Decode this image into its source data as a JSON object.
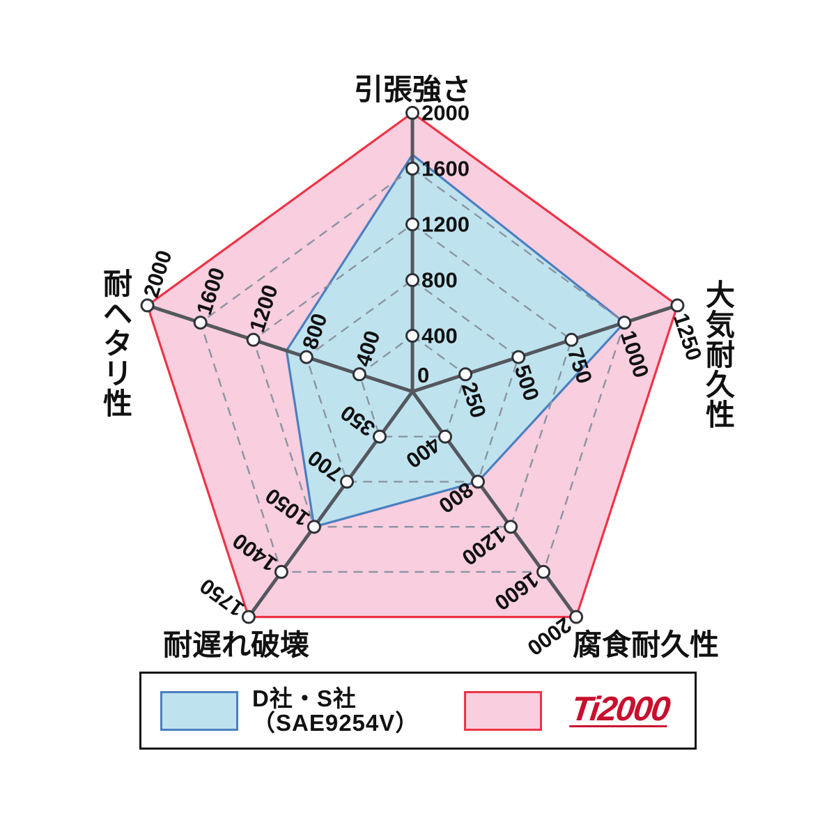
{
  "page": {
    "background": "#ffffff"
  },
  "chart_data": {
    "type": "radar",
    "shape": "pentagon",
    "grid": {
      "levels": 4,
      "style": "dashed"
    },
    "center_label": "0",
    "axes": [
      {
        "title": "引張強さ",
        "max": 2000,
        "ticks": [
          400,
          800,
          1200,
          1600,
          2000
        ]
      },
      {
        "title": "大気耐久性",
        "max": 1250,
        "ticks": [
          250,
          500,
          750,
          1000,
          1250
        ]
      },
      {
        "title": "腐食耐久性",
        "max": 2000,
        "ticks": [
          400,
          800,
          1200,
          1600,
          2000
        ]
      },
      {
        "title": "耐遅れ破壊",
        "max": 1750,
        "ticks": [
          350,
          700,
          1050,
          1400,
          1750
        ]
      },
      {
        "title": "耐ヘタリ性",
        "max": 2000,
        "ticks": [
          400,
          800,
          1200,
          1600,
          2000
        ]
      }
    ],
    "series": [
      {
        "name": "D社・S社（SAE9254V）",
        "values": [
          1700,
          1000,
          800,
          1050,
          950
        ],
        "fill": "#bfe3ee",
        "stroke": "#4b7fc0"
      },
      {
        "name": "Ti2000",
        "values": [
          2000,
          1250,
          2000,
          1750,
          2000
        ],
        "fill": "#f9cede",
        "stroke": "#ee3347"
      }
    ],
    "legend_position": "bottom"
  },
  "legend": {
    "series1_line1": "D社・S社",
    "series1_line2": "（SAE9254V）",
    "series2_logo": "Ti2000"
  },
  "colors": {
    "axis_line": "#54585e",
    "grid_line": "#8a94a2",
    "tick_circle_fill": "#ffffff",
    "tick_circle_stroke": "#2e3237",
    "label_text": "#111111",
    "legend_border": "#111111",
    "logo_red": "#c8102e"
  }
}
